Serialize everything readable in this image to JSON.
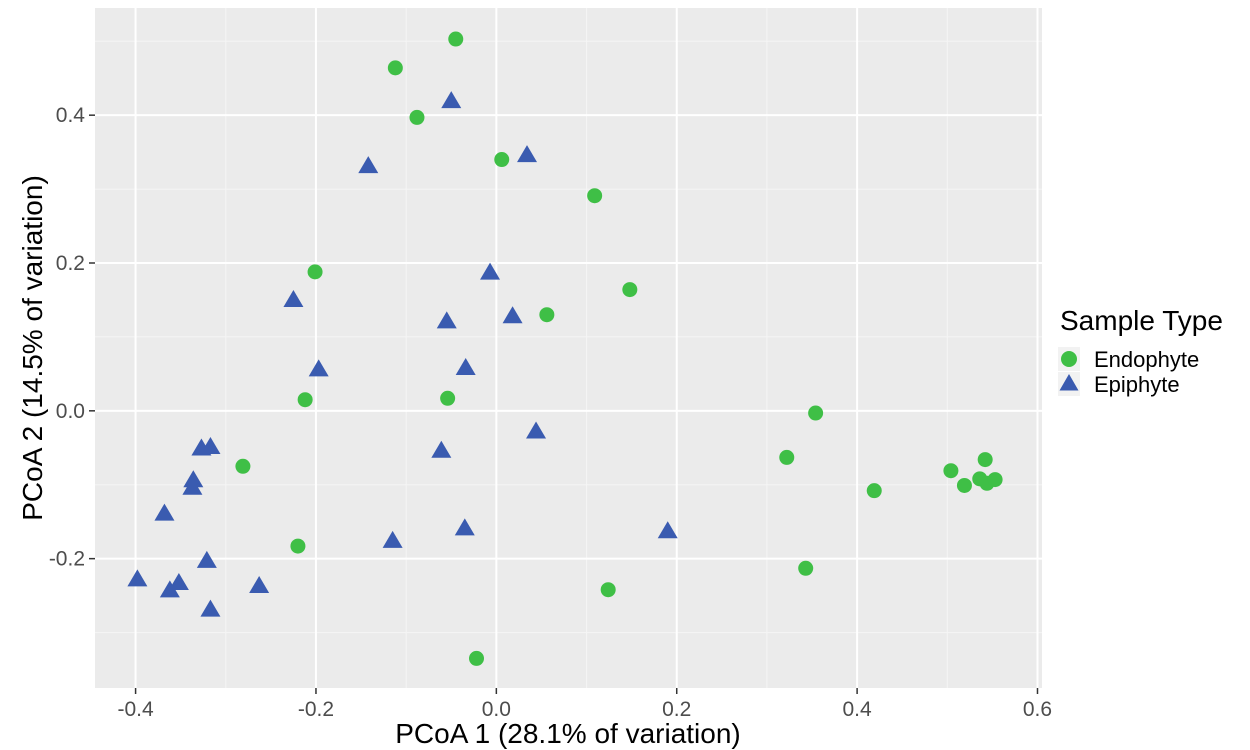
{
  "chart_data": {
    "type": "scatter",
    "xlabel": "PCoA 1 (28.1% of variation)",
    "ylabel": "PCoA 2 (14.5% of variation)",
    "xlim": [
      -0.445,
      0.605
    ],
    "ylim": [
      -0.375,
      0.545
    ],
    "x_ticks": [
      -0.4,
      -0.2,
      0.0,
      0.2,
      0.4,
      0.6
    ],
    "x_tick_labels": [
      "-0.4",
      "-0.2",
      "0.0",
      "0.2",
      "0.4",
      "0.6"
    ],
    "y_ticks": [
      -0.2,
      0.0,
      0.2,
      0.4
    ],
    "y_tick_labels": [
      "-0.2",
      "0.0",
      "0.2",
      "0.4"
    ],
    "grid": true,
    "legend": {
      "title": "Sample Type",
      "position": "right"
    },
    "series": [
      {
        "name": "Endophyte",
        "shape": "circle",
        "color": "#3fbf46",
        "points": [
          [
            -0.045,
            0.503
          ],
          [
            -0.112,
            0.464
          ],
          [
            -0.088,
            0.397
          ],
          [
            0.006,
            0.34
          ],
          [
            0.109,
            0.291
          ],
          [
            -0.201,
            0.188
          ],
          [
            0.148,
            0.164
          ],
          [
            0.056,
            0.13
          ],
          [
            -0.212,
            0.015
          ],
          [
            -0.054,
            0.017
          ],
          [
            0.354,
            -0.003
          ],
          [
            0.322,
            -0.063
          ],
          [
            -0.281,
            -0.075
          ],
          [
            0.419,
            -0.108
          ],
          [
            0.504,
            -0.081
          ],
          [
            0.519,
            -0.101
          ],
          [
            0.536,
            -0.092
          ],
          [
            0.542,
            -0.066
          ],
          [
            0.544,
            -0.098
          ],
          [
            0.553,
            -0.093
          ],
          [
            -0.22,
            -0.183
          ],
          [
            0.343,
            -0.213
          ],
          [
            0.124,
            -0.242
          ],
          [
            -0.022,
            -0.335
          ]
        ]
      },
      {
        "name": "Epiphyte",
        "shape": "triangle",
        "color": "#3a5bb0",
        "points": [
          [
            -0.05,
            0.419
          ],
          [
            0.034,
            0.346
          ],
          [
            -0.142,
            0.331
          ],
          [
            -0.007,
            0.187
          ],
          [
            -0.225,
            0.15
          ],
          [
            -0.055,
            0.121
          ],
          [
            0.018,
            0.128
          ],
          [
            -0.197,
            0.056
          ],
          [
            -0.034,
            0.058
          ],
          [
            0.044,
            -0.028
          ],
          [
            -0.317,
            -0.049
          ],
          [
            -0.327,
            -0.051
          ],
          [
            -0.061,
            -0.054
          ],
          [
            -0.336,
            -0.094
          ],
          [
            -0.337,
            -0.104
          ],
          [
            -0.368,
            -0.139
          ],
          [
            -0.115,
            -0.176
          ],
          [
            -0.035,
            -0.159
          ],
          [
            0.19,
            -0.163
          ],
          [
            -0.321,
            -0.203
          ],
          [
            -0.398,
            -0.228
          ],
          [
            -0.352,
            -0.233
          ],
          [
            -0.362,
            -0.243
          ],
          [
            -0.263,
            -0.237
          ],
          [
            -0.317,
            -0.269
          ]
        ]
      }
    ]
  }
}
